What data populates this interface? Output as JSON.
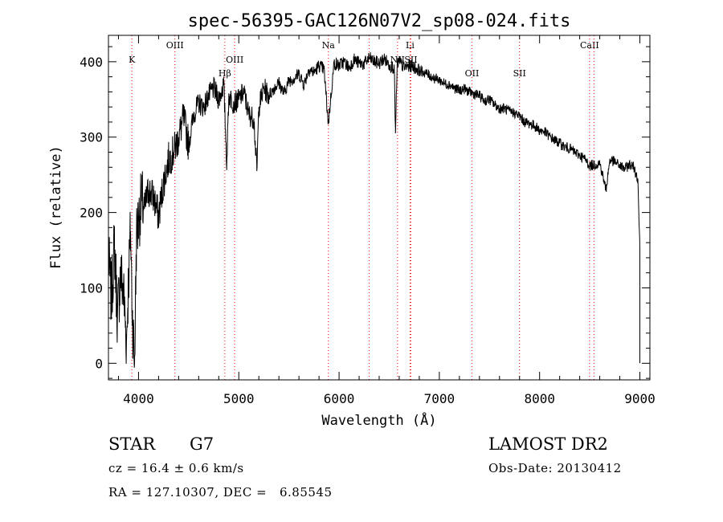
{
  "chart_data": {
    "type": "line",
    "title": "spec-56395-GAC126N07V2_sp08-024.fits",
    "xlabel": "Wavelength (Å)",
    "ylabel": "Flux (relative)",
    "xlim": [
      3700,
      9100
    ],
    "ylim": [
      -22,
      435
    ],
    "xticks": [
      4000,
      5000,
      6000,
      7000,
      8000,
      9000
    ],
    "yticks": [
      0,
      100,
      200,
      300,
      400
    ],
    "grid": false,
    "line_color": "#000000",
    "marker_color": "#ff0000",
    "lines": [
      {
        "label": "K",
        "x": 3934
      },
      {
        "label": "OIII",
        "x": 4363
      },
      {
        "label": "Hβ",
        "x": 4861
      },
      {
        "label": "OIII",
        "x": 4959
      },
      {
        "label": "Na",
        "x": 5893
      },
      {
        "label": "Li",
        "x": 6708
      },
      {
        "label": "NII",
        "x": 6583
      },
      {
        "label": "SII",
        "x": 6716
      },
      {
        "label": "OII",
        "x": 7325
      },
      {
        "label": "SII",
        "x": 7800
      },
      {
        "label": "CaII",
        "x": 8498
      }
    ],
    "unlabeled_lines": [
      6300,
      8542
    ],
    "spectrum": {
      "x": [
        3700,
        3730,
        3760,
        3790,
        3820,
        3850,
        3880,
        3900,
        3920,
        3940,
        3960,
        3980,
        4000,
        4030,
        4060,
        4100,
        4150,
        4200,
        4250,
        4300,
        4350,
        4400,
        4450,
        4500,
        4550,
        4600,
        4650,
        4700,
        4750,
        4800,
        4850,
        4880,
        4900,
        4950,
        5000,
        5050,
        5100,
        5150,
        5180,
        5200,
        5250,
        5300,
        5350,
        5400,
        5450,
        5500,
        5550,
        5600,
        5650,
        5700,
        5750,
        5800,
        5850,
        5893,
        5950,
        6000,
        6050,
        6100,
        6150,
        6200,
        6250,
        6300,
        6350,
        6400,
        6450,
        6500,
        6550,
        6563,
        6580,
        6600,
        6650,
        6700,
        6750,
        6800,
        6850,
        6900,
        6950,
        7000,
        7050,
        7100,
        7150,
        7200,
        7250,
        7300,
        7350,
        7400,
        7450,
        7500,
        7550,
        7600,
        7650,
        7700,
        7750,
        7800,
        7850,
        7900,
        7950,
        8000,
        8050,
        8100,
        8150,
        8200,
        8250,
        8300,
        8350,
        8400,
        8450,
        8500,
        8542,
        8600,
        8662,
        8700,
        8750,
        8800,
        8850,
        8900,
        8940,
        8960,
        8980,
        9000
      ],
      "y": [
        140,
        85,
        160,
        60,
        120,
        95,
        30,
        110,
        175,
        60,
        0,
        170,
        190,
        215,
        205,
        230,
        220,
        195,
        240,
        270,
        280,
        300,
        325,
        290,
        330,
        345,
        340,
        355,
        365,
        350,
        370,
        265,
        355,
        345,
        350,
        360,
        330,
        325,
        255,
        340,
        365,
        355,
        365,
        372,
        358,
        375,
        378,
        384,
        370,
        390,
        386,
        395,
        390,
        318,
        398,
        395,
        400,
        392,
        403,
        398,
        397,
        405,
        400,
        398,
        404,
        396,
        392,
        305,
        398,
        400,
        392,
        395,
        393,
        388,
        386,
        382,
        378,
        376,
        371,
        370,
        365,
        362,
        364,
        360,
        357,
        355,
        348,
        350,
        343,
        338,
        338,
        334,
        332,
        328,
        320,
        318,
        315,
        309,
        307,
        301,
        296,
        292,
        287,
        285,
        280,
        276,
        271,
        262,
        263,
        266,
        230,
        270,
        267,
        262,
        258,
        264,
        260,
        252,
        245,
        150
      ]
    }
  },
  "info": {
    "object_type": "STAR",
    "subclass": "G7",
    "survey": "LAMOST DR2",
    "redshift_line": "cz = 16.4 ± 0.6 km/s",
    "obs_date": "Obs-Date: 20130412",
    "coords_line": "RA = 127.10307, DEC =   6.85545"
  }
}
